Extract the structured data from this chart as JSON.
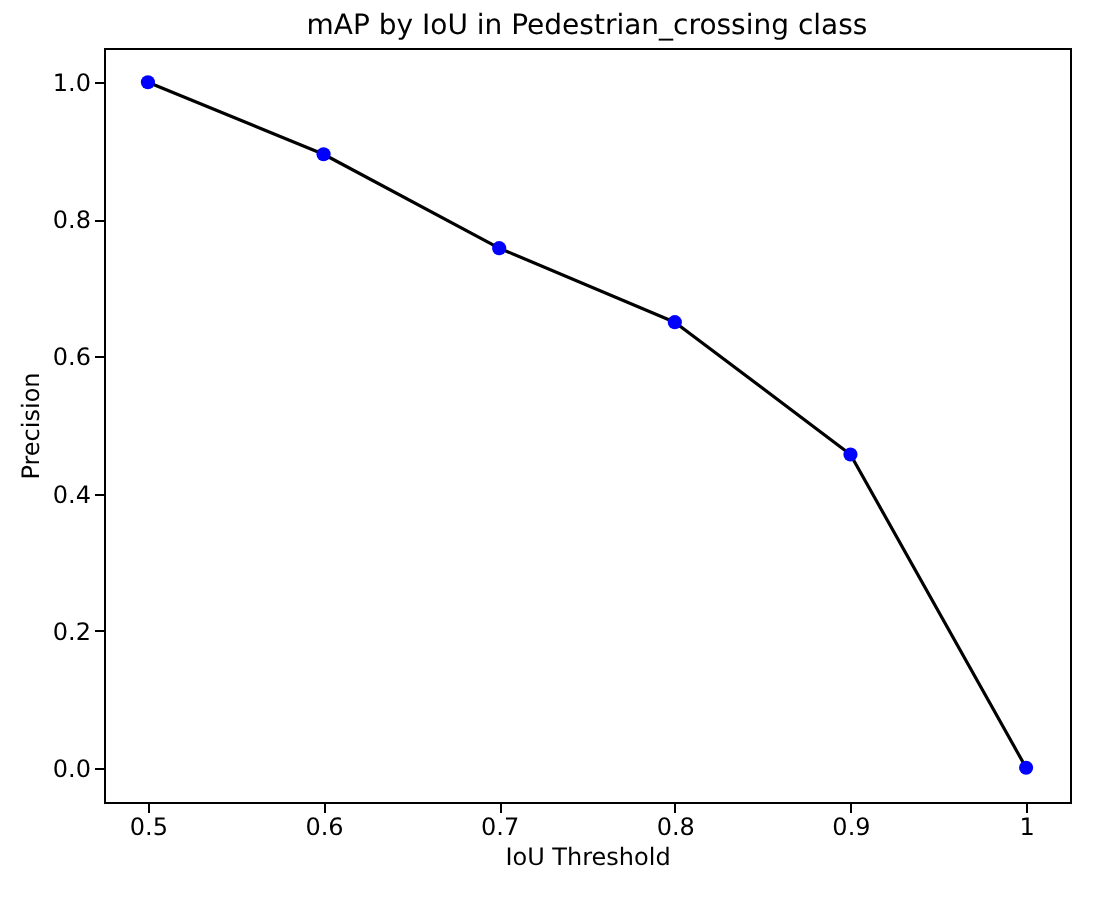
{
  "chart_data": {
    "type": "line",
    "title": "mAP by IoU in Pedestrian_crossing class",
    "xlabel": "IoU Threshold",
    "ylabel": "Precision",
    "x": [
      0.5,
      0.6,
      0.7,
      0.8,
      0.9,
      1
    ],
    "series": [
      {
        "color": "#000000",
        "marker": "none",
        "values": [
          1.0,
          0.895,
          0.758,
          0.65,
          0.457,
          0.0
        ]
      },
      {
        "type": "scatter",
        "color": "#0000ff",
        "marker": "circle",
        "values": [
          1.0,
          0.895,
          0.758,
          0.65,
          0.457,
          0.0
        ]
      }
    ],
    "xlim": [
      0.475,
      1.025
    ],
    "ylim": [
      -0.05,
      1.05
    ],
    "xticks": [
      0.5,
      0.6,
      0.7,
      0.8,
      0.9,
      1
    ],
    "yticks": [
      {
        "value": 0,
        "label": "0.0"
      },
      0.2,
      0.4,
      0.6,
      0.8,
      {
        "value": 1,
        "label": "1.0"
      }
    ],
    "grid": false
  }
}
